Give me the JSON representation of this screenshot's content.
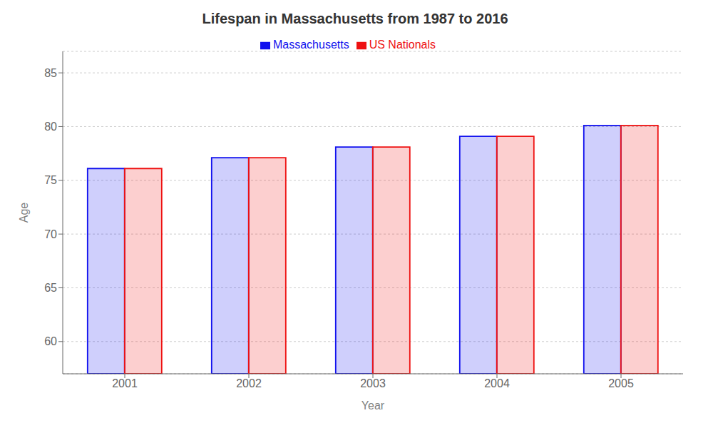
{
  "chart_data": {
    "type": "bar",
    "title": "Lifespan in Massachusetts from 1987 to 2016",
    "x_label": "Year",
    "y_label": "Age",
    "categories": [
      "2001",
      "2002",
      "2003",
      "2004",
      "2005"
    ],
    "series": [
      {
        "name": "Massachusetts",
        "color": "#1111ee",
        "values": [
          76.1,
          77.1,
          78.1,
          79.1,
          80.1
        ]
      },
      {
        "name": "US Nationals",
        "color": "#ee1111",
        "values": [
          76.1,
          77.1,
          78.1,
          79.1,
          80.1
        ]
      }
    ],
    "ylim": [
      57,
      87
    ],
    "yticks": [
      60,
      65,
      70,
      75,
      80,
      85
    ],
    "grid": true,
    "legend": "top"
  }
}
